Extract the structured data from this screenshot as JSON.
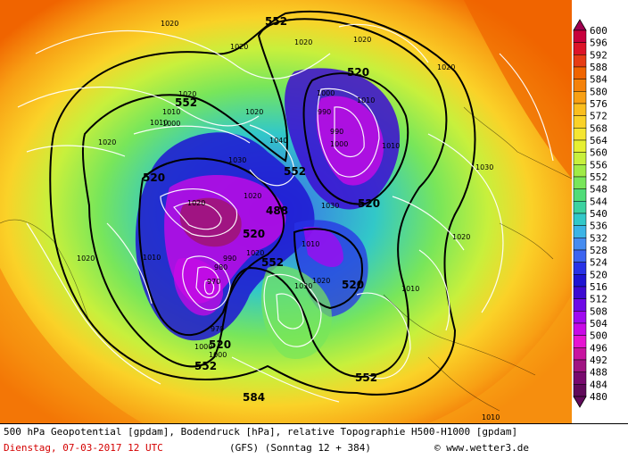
{
  "map": {
    "contour_labels_552": [
      "552",
      "552",
      "552",
      "552",
      "552",
      "552"
    ],
    "contour_labels_520": [
      "520",
      "520",
      "520",
      "520",
      "520",
      "520",
      "520"
    ],
    "pressure_labels": [
      "1020",
      "1020",
      "1010",
      "1020",
      "1010",
      "1000",
      "1020",
      "1040",
      "1030",
      "1020",
      "1020",
      "1000",
      "990",
      "990",
      "1000",
      "1010",
      "1010",
      "1020",
      "1020",
      "1030",
      "1020",
      "1010",
      "1020",
      "980",
      "970",
      "970",
      "990",
      "1000",
      "1020",
      "1030",
      "1020",
      "1010",
      "1020",
      "1010",
      "1020",
      "1030",
      "1000",
      "1010"
    ],
    "low_center_label": "488",
    "partial_label": "584"
  },
  "legend": {
    "values": [
      "600",
      "596",
      "592",
      "588",
      "584",
      "580",
      "576",
      "572",
      "568",
      "564",
      "560",
      "556",
      "552",
      "548",
      "544",
      "540",
      "536",
      "532",
      "528",
      "524",
      "520",
      "516",
      "512",
      "508",
      "504",
      "500",
      "496",
      "492",
      "488",
      "484",
      "480"
    ],
    "colors": [
      "#a00050",
      "#c8003c",
      "#dc1428",
      "#e63c14",
      "#f06400",
      "#f5820a",
      "#f8a014",
      "#fabe1e",
      "#fad228",
      "#f5e632",
      "#e6f032",
      "#c8f03c",
      "#a0eb46",
      "#78e65a",
      "#50dc78",
      "#3cd2a0",
      "#32c8c8",
      "#3cb4e6",
      "#468cf0",
      "#3c64f0",
      "#2832e6",
      "#1e14d2",
      "#3c0ad2",
      "#6e0ae6",
      "#a00af0",
      "#c80ae6",
      "#e614d2",
      "#c814a0",
      "#a01482",
      "#780a6e",
      "#600a5a"
    ]
  },
  "footer": {
    "line1": "500 hPa Geopotential [gpdam], Bodendruck [hPa], relative Topographie H500-H1000 [gpdam]",
    "date": "Dienstag, 07-03-2017  12 UTC",
    "model": "(GFS)  (Sonntag 12 + 384)",
    "copyright": "© www.wetter3.de"
  }
}
